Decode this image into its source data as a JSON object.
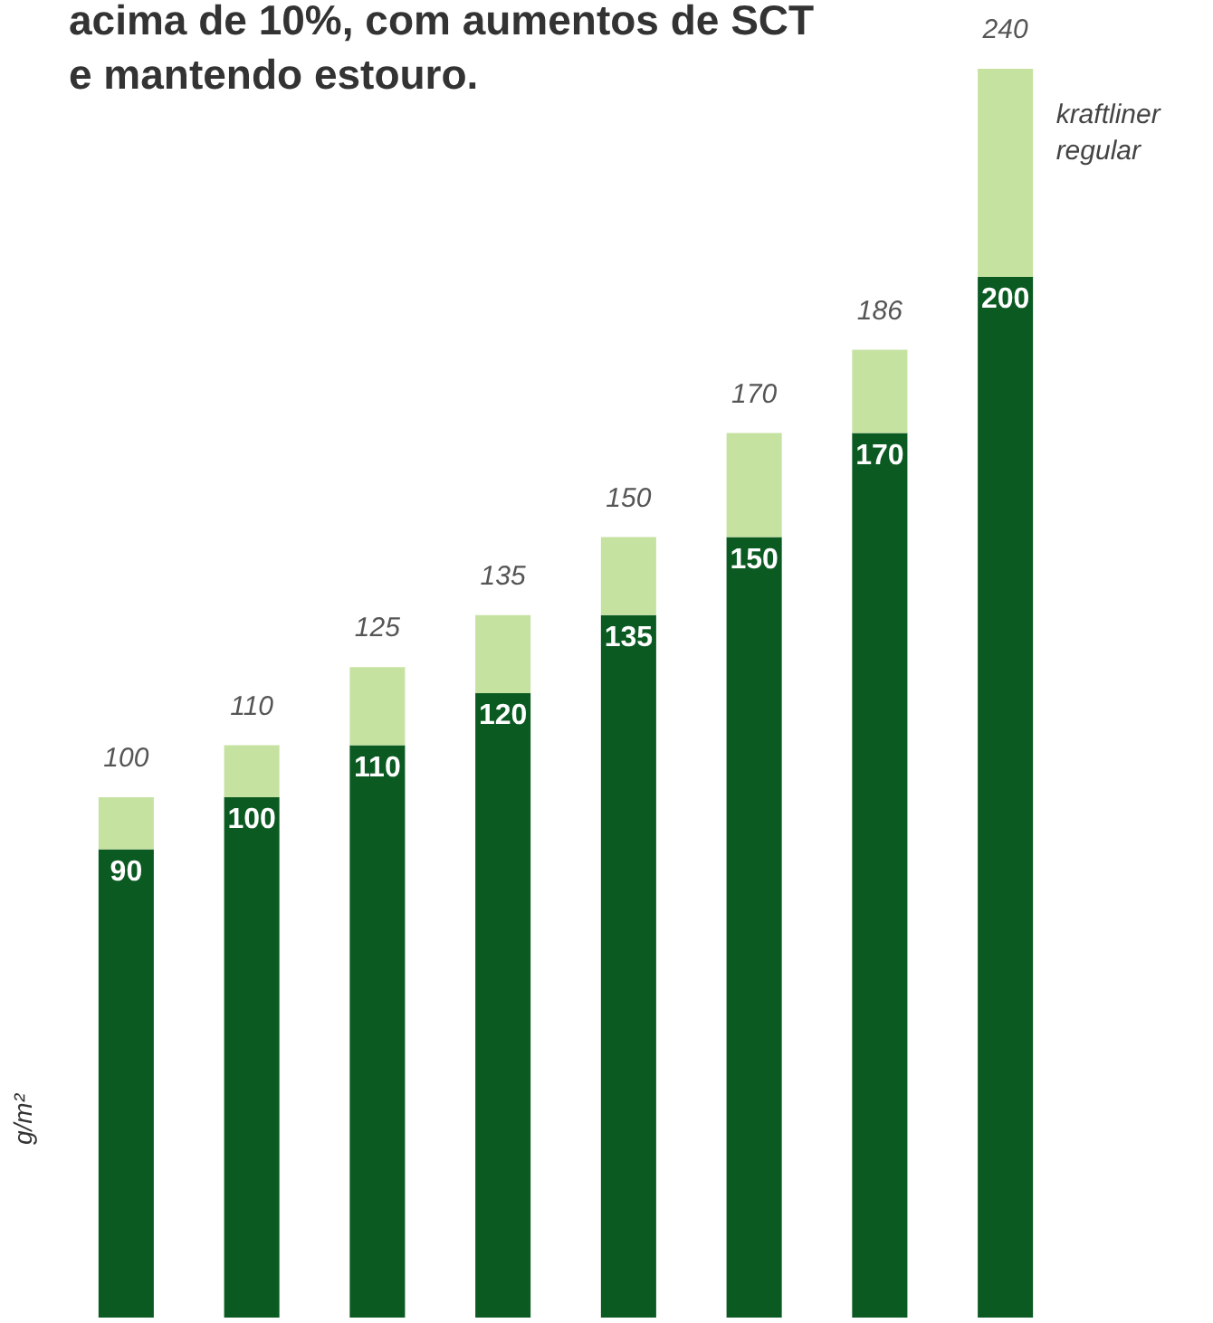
{
  "chart_data": {
    "type": "bar",
    "title": "acima de 10%, com aumentos de SCT e mantendo estouro.",
    "ylabel": "g/m²",
    "categories": [
      null,
      null,
      null,
      null,
      null,
      null,
      null,
      null
    ],
    "stacked": true,
    "series": [
      {
        "color": "#0b5a22",
        "values": [
          90,
          100,
          110,
          120,
          135,
          150,
          170,
          200
        ],
        "value_labels": [
          "90",
          "100",
          "110",
          "120",
          "135",
          "150",
          "170",
          "200"
        ]
      },
      {
        "name": "kraftliner regular",
        "color": "#c6e2a1",
        "values": [
          10,
          10,
          15,
          15,
          15,
          20,
          16,
          40
        ]
      }
    ],
    "totals": [
      "100",
      "110",
      "125",
      "135",
      "150",
      "170",
      "186",
      "240"
    ],
    "ylim": [
      0,
      240
    ]
  }
}
